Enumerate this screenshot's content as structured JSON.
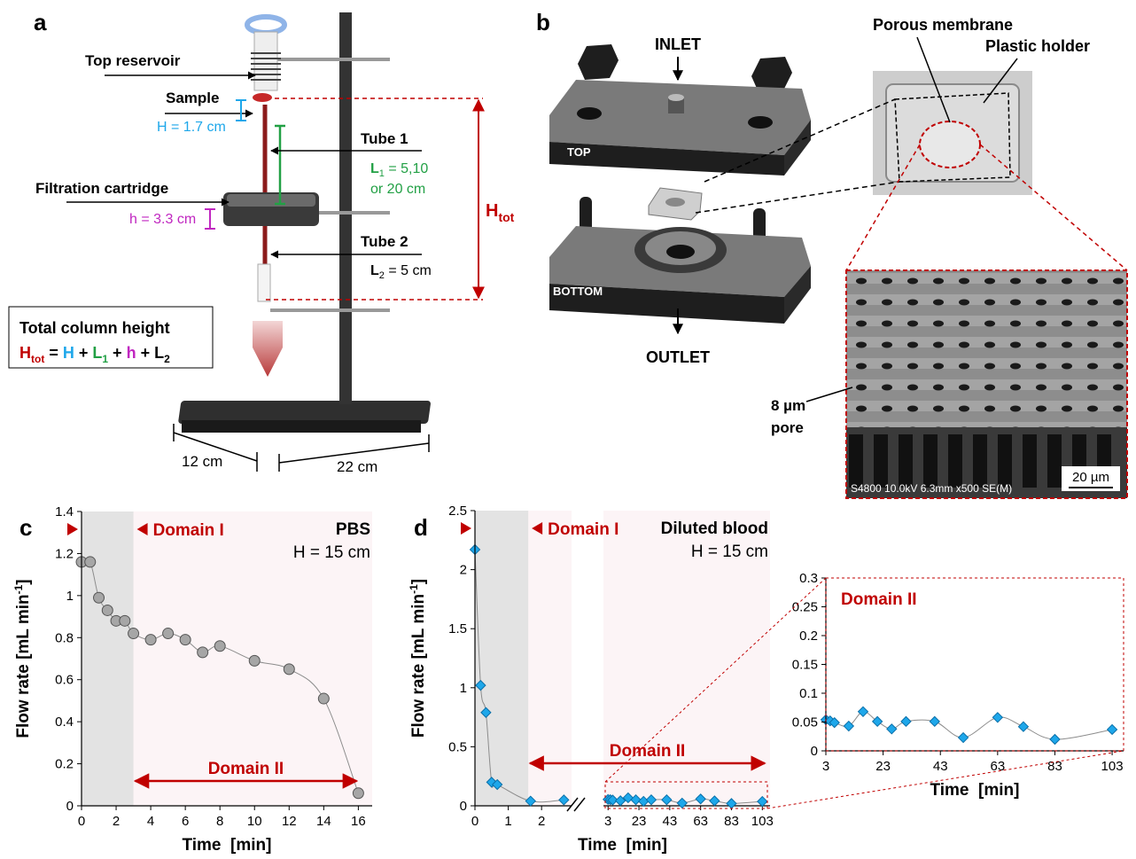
{
  "panel_a": {
    "letter": "a",
    "top_reservoir": "Top reservoir",
    "sample": "Sample",
    "h_sample": "H = 1.7 cm",
    "tube1": "Tube 1",
    "l1": [
      "L",
      "1",
      " = 5,10"
    ],
    "l1_line2": "or 20 cm",
    "filtration_cartridge": "Filtration cartridge",
    "h_cartridge": "h = 3.3 cm",
    "tube2": "Tube 2",
    "l2": [
      "L",
      "2",
      " = 5 cm"
    ],
    "htot": [
      "H",
      "tot"
    ],
    "total_title": "Total column height",
    "formula": [
      "H",
      "tot",
      " = ",
      "H",
      " + ",
      "L",
      "1",
      " + ",
      "h",
      " + ",
      "L",
      "2"
    ],
    "base_depth": "12 cm",
    "base_width": "22 cm"
  },
  "panel_b": {
    "letter": "b",
    "inlet": "INLET",
    "top": "TOP",
    "bottom": "BOTTOM",
    "outlet": "OUTLET",
    "porous_membrane": "Porous membrane",
    "plastic_holder": "Plastic holder",
    "pore": [
      "8 µm",
      "pore"
    ],
    "scale_bar": "20 µm",
    "sem_caption": "S4800 10.0kV 6.3mm x500 SE(M)"
  },
  "chart_data": [
    {
      "type": "line",
      "letter": "c",
      "label": "PBS",
      "subtitle": "H = 15 cm",
      "domain_I_label": "Domain I",
      "domain_II_label": "Domain II",
      "domain_I_xlim": [
        0,
        3
      ],
      "domain_II_xlim": [
        3,
        16
      ],
      "xlabel": "Time  [min]",
      "ylabel": [
        "Flow rate [mL min",
        "-1",
        "]"
      ],
      "marker": "circle",
      "color": "#a6a6a6",
      "line_color": "#8c8c8c",
      "background": "#fcf4f6",
      "shade_color": "#e3e3e3",
      "x": [
        0,
        0.5,
        1,
        1.5,
        2,
        2.5,
        3,
        4,
        5,
        6,
        7,
        8,
        10,
        12,
        14,
        16
      ],
      "values": [
        1.16,
        1.16,
        0.99,
        0.93,
        0.88,
        0.88,
        0.82,
        0.79,
        0.82,
        0.79,
        0.73,
        0.76,
        0.69,
        0.65,
        0.51,
        0.06
      ],
      "xlim": [
        0,
        16.8
      ],
      "xticks": [
        0,
        2,
        4,
        6,
        8,
        10,
        12,
        14,
        16
      ],
      "ylim": [
        0,
        1.4
      ],
      "yticks": [
        0,
        0.2,
        0.4,
        0.6,
        0.8,
        1,
        1.2,
        1.4
      ]
    },
    {
      "type": "line",
      "letter": "d",
      "label": "Diluted blood",
      "subtitle": "H = 15 cm",
      "domain_I_label": "Domain I",
      "domain_II_label": "Domain II",
      "domain_I_xlim": [
        0,
        1.6
      ],
      "xlabel": "Time  [min]",
      "ylabel": [
        "Flow rate [mL min",
        "-1",
        "]"
      ],
      "marker": "diamond",
      "color": "#1ea7ea",
      "line_color": "#8c8c8c",
      "background": "#fcf4f6",
      "shade_color": "#e3e3e3",
      "segments": [
        {
          "x": [
            0,
            0.17,
            0.33,
            0.5,
            0.67,
            1.67,
            2.67
          ],
          "values": [
            2.17,
            1.02,
            0.79,
            0.2,
            0.18,
            0.04,
            0.05
          ],
          "xlim": [
            0,
            2.9
          ],
          "xticks": [
            0,
            1,
            2
          ]
        },
        {
          "x": [
            3,
            4.5,
            6,
            11,
            16,
            21,
            26,
            31,
            41,
            51,
            63,
            72,
            83,
            103
          ],
          "values": [
            0.054,
            0.052,
            0.049,
            0.043,
            0.068,
            0.051,
            0.038,
            0.051,
            0.051,
            0.023,
            0.058,
            0.042,
            0.02,
            0.037
          ],
          "xlim": [
            0,
            108
          ],
          "xticks": [
            3,
            23,
            43,
            63,
            83,
            103
          ]
        }
      ],
      "ylim": [
        0,
        2.5
      ],
      "yticks": [
        0,
        0.5,
        1,
        1.5,
        2,
        2.5
      ]
    },
    {
      "type": "line",
      "domain_II_label": "Domain II",
      "xlabel": "Time  [min]",
      "marker": "diamond",
      "color": "#1ea7ea",
      "line_color": "#8c8c8c",
      "background": "#ffffff",
      "x": [
        3,
        4.5,
        6,
        11,
        16,
        21,
        26,
        31,
        41,
        51,
        63,
        72,
        83,
        103
      ],
      "values": [
        0.054,
        0.052,
        0.049,
        0.043,
        0.068,
        0.051,
        0.038,
        0.051,
        0.051,
        0.023,
        0.058,
        0.042,
        0.02,
        0.037
      ],
      "xlim": [
        3,
        107
      ],
      "xticks": [
        3,
        23,
        43,
        63,
        83,
        103
      ],
      "ylim": [
        0,
        0.3
      ],
      "yticks": [
        0,
        0.05,
        0.1,
        0.15,
        0.2,
        0.25,
        0.3
      ]
    }
  ]
}
